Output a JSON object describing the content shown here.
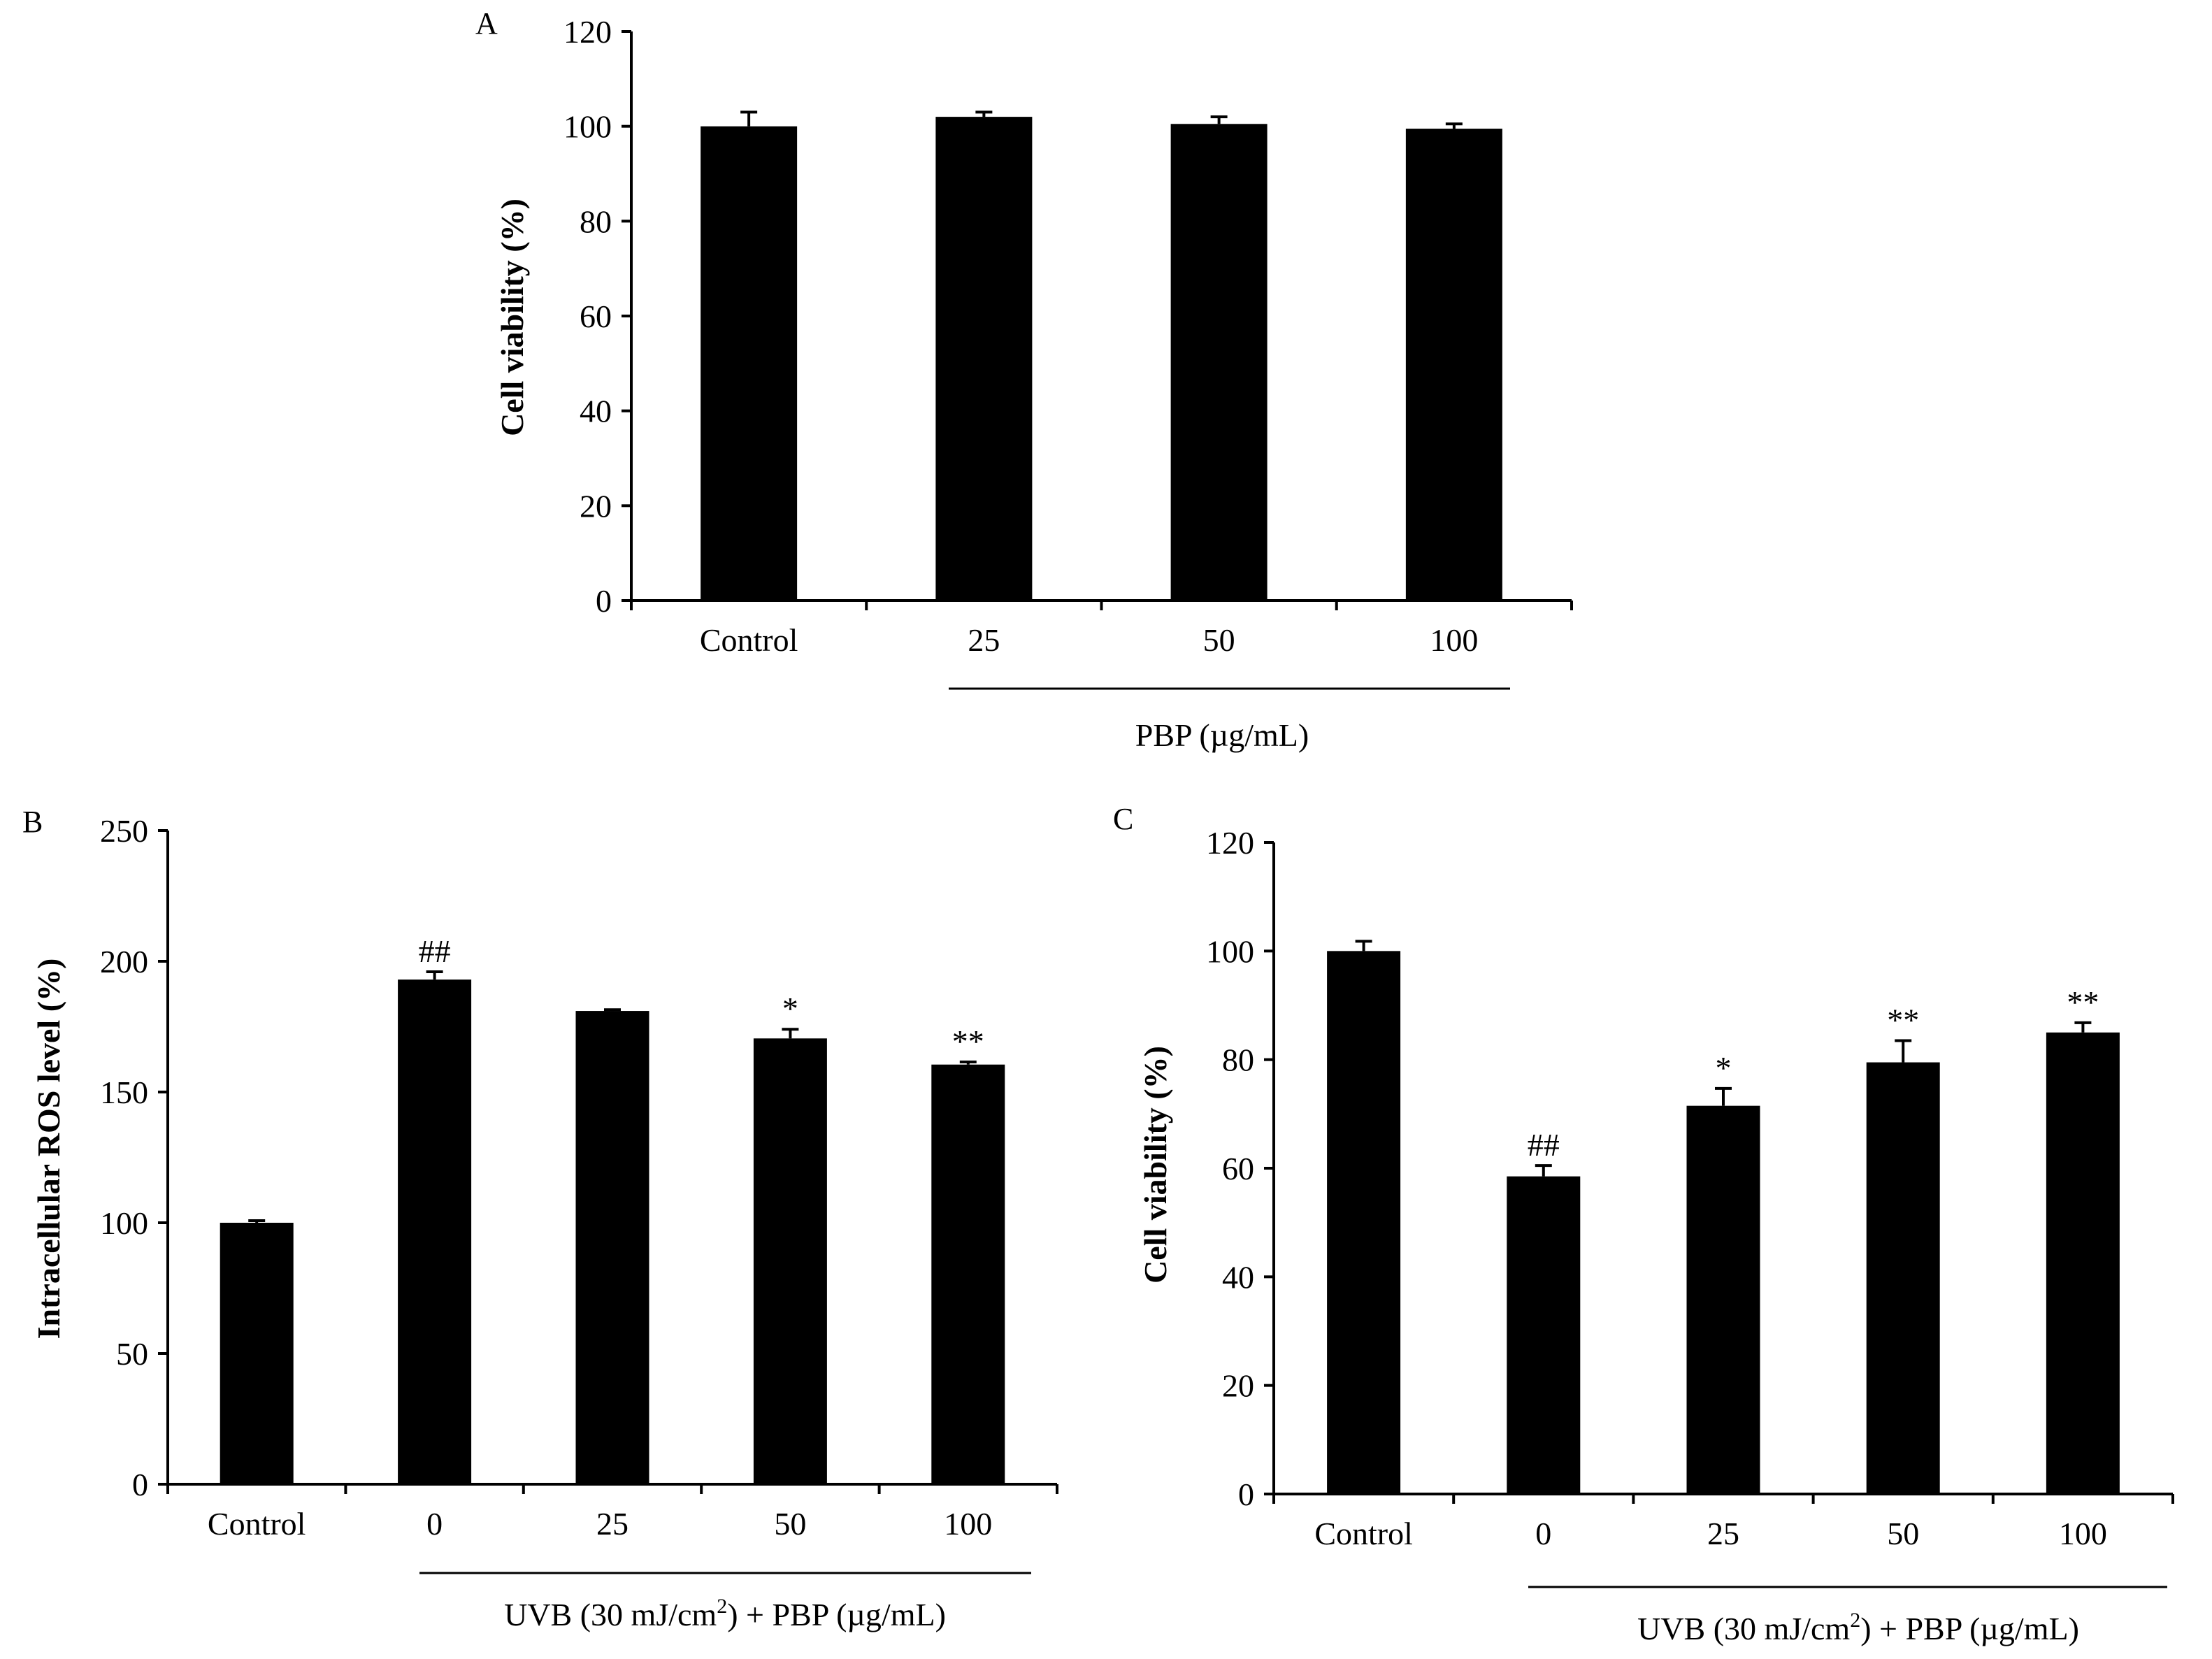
{
  "colors": {
    "bar": "#000000",
    "axis": "#000000",
    "background": "#ffffff"
  },
  "chart_data": [
    {
      "panel": "A",
      "type": "bar",
      "categories": [
        "Control",
        "25",
        "50",
        "100"
      ],
      "values": [
        100,
        102,
        100.5,
        99.5
      ],
      "errors": [
        3,
        1,
        1.5,
        1
      ],
      "annotations": [
        "",
        "",
        "",
        ""
      ],
      "ylabel": "Cell viability (%)",
      "ylim": [
        0,
        120
      ],
      "yticks": [
        "0",
        "20",
        "40",
        "60",
        "80",
        "100",
        "120"
      ],
      "group_label": "PBP (µg/mL)",
      "group_start": 1,
      "grid": false
    },
    {
      "panel": "B",
      "type": "bar",
      "categories": [
        "Control",
        "0",
        "25",
        "50",
        "100"
      ],
      "values": [
        100,
        193,
        181,
        170.5,
        160.5
      ],
      "errors": [
        0.8,
        3,
        0.5,
        3.5,
        1
      ],
      "annotations": [
        "",
        "##",
        "",
        "*",
        "**"
      ],
      "ylabel": "Intracellular ROS level (%)",
      "ylim": [
        0,
        250
      ],
      "yticks": [
        "0",
        "50",
        "100",
        "150",
        "200",
        "250"
      ],
      "group_label_parts": [
        "UVB (30 mJ/cm",
        "2",
        ") + PBP (µg/mL)"
      ],
      "group_start": 1,
      "grid": false
    },
    {
      "panel": "C",
      "type": "bar",
      "categories": [
        "Control",
        "0",
        "25",
        "50",
        "100"
      ],
      "values": [
        100,
        58.5,
        71.5,
        79.5,
        85
      ],
      "errors": [
        1.8,
        2,
        3.2,
        4,
        1.8
      ],
      "annotations": [
        "",
        "##",
        "*",
        "**",
        "**"
      ],
      "ylabel": "Cell viability (%)",
      "ylim": [
        0,
        120
      ],
      "yticks": [
        "0",
        "20",
        "40",
        "60",
        "80",
        "100",
        "120"
      ],
      "group_label_parts": [
        "UVB (30 mJ/cm",
        "2",
        ") + PBP (µg/mL)"
      ],
      "group_start": 1,
      "grid": false
    }
  ]
}
